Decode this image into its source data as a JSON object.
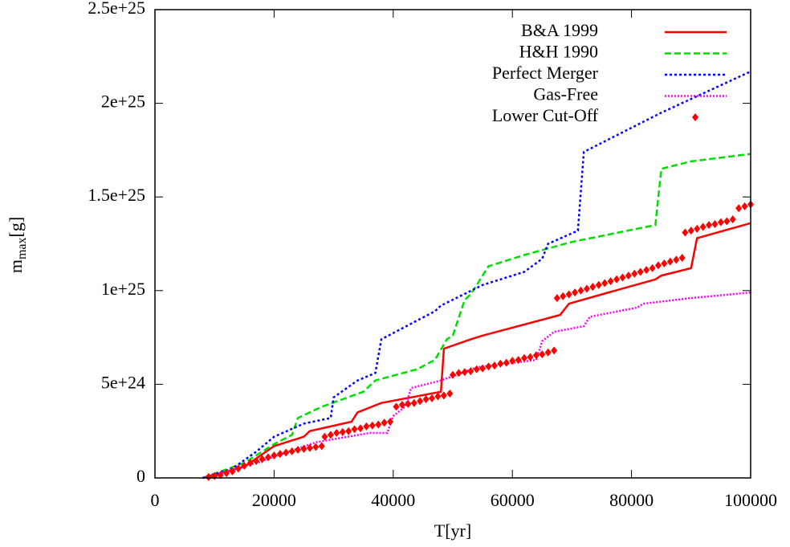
{
  "chart_data": {
    "type": "line",
    "x_label": "T[yr]",
    "y_label": {
      "base": "m",
      "sub": "max",
      "unit": "[g]"
    },
    "xlim": [
      0,
      100000
    ],
    "xticks": [
      0,
      20000,
      40000,
      60000,
      80000,
      100000
    ],
    "ylim": [
      0,
      2.5e+25
    ],
    "yticks": [
      0,
      {
        "value": 5e+24,
        "label": "5e+24"
      },
      {
        "value": 1e+25,
        "label": "1e+25"
      },
      {
        "value": 1.5e+25,
        "label": "1.5e+25"
      },
      {
        "value": 2e+25,
        "label": "2e+25"
      },
      {
        "value": 2.5e+25,
        "label": "2.5e+25"
      }
    ],
    "legend": "top-right",
    "grid": false,
    "series": [
      {
        "name": "B&A 1999",
        "color": "#ff0000",
        "style": "solid",
        "x": [
          8000,
          15000,
          20000,
          25000,
          26000,
          33000,
          34000,
          38000,
          48000,
          48500,
          53000,
          55000,
          68000,
          69500,
          75000,
          84000,
          85000,
          90000,
          91000,
          100000
        ],
        "values": [
          0,
          6e+23,
          1.7e+24,
          2.2e+24,
          2.5e+24,
          3e+24,
          3.5e+24,
          4e+24,
          4.6e+24,
          6.9e+24,
          7.4e+24,
          7.6e+24,
          8.7e+24,
          9.3e+24,
          9.8e+24,
          1.06e+25,
          1.08e+25,
          1.12e+25,
          1.28e+25,
          1.36e+25
        ]
      },
      {
        "name": "H&H 1990",
        "color": "#00dd00",
        "style": "dashed",
        "x": [
          8000,
          15000,
          20000,
          23000,
          24000,
          28000,
          35000,
          37000,
          44000,
          47000,
          49000,
          50000,
          52000,
          53000,
          56000,
          62000,
          70000,
          84000,
          85000,
          90000,
          100000
        ],
        "values": [
          0,
          8e+23,
          1.8e+24,
          2.3e+24,
          3.2e+24,
          3.8e+24,
          4.6e+24,
          5.2e+24,
          5.8e+24,
          6.3e+24,
          7.4e+24,
          7.6e+24,
          9.5e+24,
          9.8e+24,
          1.13e+25,
          1.19e+25,
          1.26e+25,
          1.35e+25,
          1.65e+25,
          1.69e+25,
          1.73e+25
        ]
      },
      {
        "name": "Perfect Merger",
        "color": "#0000ff",
        "style": "dotted",
        "x": [
          8000,
          13000,
          17000,
          20000,
          25000,
          29500,
          30000,
          34000,
          37000,
          38000,
          44000,
          47000,
          48000,
          55000,
          62000,
          65000,
          66000,
          71000,
          72000,
          85000,
          100000
        ],
        "values": [
          0,
          5e+23,
          1.4e+24,
          2.2e+24,
          2.9e+24,
          3.2e+24,
          4.3e+24,
          5.2e+24,
          5.6e+24,
          7.4e+24,
          8.4e+24,
          8.9e+24,
          9.2e+24,
          1.03e+25,
          1.1e+25,
          1.17e+25,
          1.25e+25,
          1.32e+25,
          1.74e+25,
          1.95e+25,
          2.17e+25
        ]
      },
      {
        "name": "Gas-Free",
        "color": "#ff00ff",
        "style": "fine",
        "x": [
          8000,
          17000,
          27000,
          36000,
          39000,
          40000,
          42000,
          43000,
          48000,
          54000,
          64000,
          65000,
          67000,
          72000,
          73000,
          81000,
          82000,
          90000,
          100000
        ],
        "values": [
          0,
          8e+23,
          1.9e+24,
          2.4e+24,
          2.4e+24,
          3.3e+24,
          3.8e+24,
          4.8e+24,
          5.2e+24,
          5.9e+24,
          6.3e+24,
          7.3e+24,
          7.8e+24,
          8.1e+24,
          8.6e+24,
          9.1e+24,
          9.3e+24,
          9.6e+24,
          9.9e+24
        ]
      },
      {
        "name": "Lower Cut-Off",
        "color": "#ff0000",
        "style": "points",
        "x": [
          9000,
          10000,
          11000,
          12000,
          13000,
          14000,
          15000,
          16000,
          17000,
          18000,
          19000,
          20000,
          21000,
          22000,
          23000,
          24000,
          25000,
          26000,
          27000,
          28000,
          28500,
          29500,
          30500,
          31500,
          32500,
          33500,
          34500,
          35500,
          36500,
          37500,
          38500,
          39500,
          40500,
          41500,
          42500,
          43500,
          44500,
          45500,
          46500,
          47500,
          48500,
          49500,
          50000,
          51000,
          52000,
          53000,
          54000,
          55000,
          56000,
          57000,
          58000,
          59000,
          60000,
          61000,
          62000,
          63000,
          64000,
          65000,
          66000,
          67000,
          67500,
          68500,
          69500,
          70500,
          71500,
          72500,
          73500,
          74500,
          75500,
          76500,
          77500,
          78500,
          79500,
          80500,
          81500,
          82500,
          83500,
          84500,
          85500,
          86500,
          87500,
          88500,
          89000,
          90000,
          91000,
          92000,
          93000,
          94000,
          95000,
          96000,
          97000,
          98000,
          99000,
          100000
        ],
        "values": [
          5e+22,
          1e+23,
          1.5e+23,
          2.5e+23,
          3.5e+23,
          5e+23,
          6.5e+23,
          8e+23,
          9e+23,
          1e+24,
          1.1e+24,
          1.2e+24,
          1.28e+24,
          1.35e+24,
          1.42e+24,
          1.5e+24,
          1.55e+24,
          1.6e+24,
          1.65e+24,
          1.7e+24,
          2.2e+24,
          2.3e+24,
          2.4e+24,
          2.45e+24,
          2.5e+24,
          2.6e+24,
          2.65e+24,
          2.75e+24,
          2.8e+24,
          2.85e+24,
          2.95e+24,
          3e+24,
          3.8e+24,
          3.9e+24,
          3.95e+24,
          4e+24,
          4.1e+24,
          4.2e+24,
          4.25e+24,
          4.35e+24,
          4.4e+24,
          4.5e+24,
          5.5e+24,
          5.6e+24,
          5.65e+24,
          5.7e+24,
          5.8e+24,
          5.85e+24,
          5.95e+24,
          6e+24,
          6.1e+24,
          6.15e+24,
          6.25e+24,
          6.3e+24,
          6.4e+24,
          6.45e+24,
          6.55e+24,
          6.6e+24,
          6.7e+24,
          6.8e+24,
          9.6e+24,
          9.7e+24,
          9.8e+24,
          9.9e+24,
          1e+25,
          1.01e+25,
          1.02e+25,
          1.03e+25,
          1.04e+25,
          1.05e+25,
          1.06e+25,
          1.07e+25,
          1.08e+25,
          1.09e+25,
          1.1e+25,
          1.11e+25,
          1.12e+25,
          1.135e+25,
          1.145e+25,
          1.155e+25,
          1.165e+25,
          1.175e+25,
          1.31e+25,
          1.32e+25,
          1.33e+25,
          1.34e+25,
          1.35e+25,
          1.355e+25,
          1.365e+25,
          1.37e+25,
          1.38e+25,
          1.44e+25,
          1.45e+25,
          1.46e+25
        ]
      }
    ]
  }
}
